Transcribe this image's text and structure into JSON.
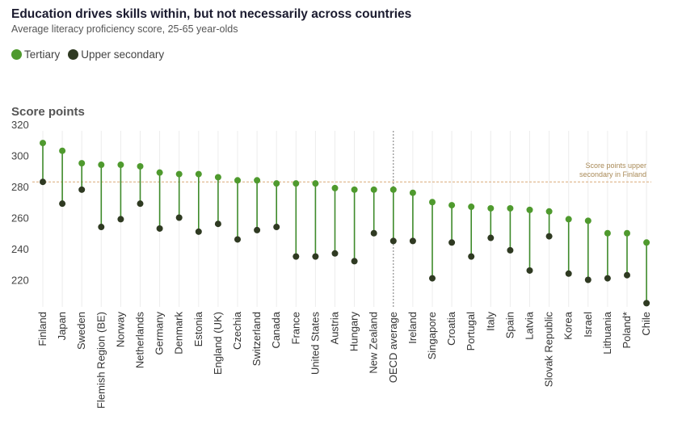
{
  "title": "Education drives skills within, but not necessarily across countries",
  "subtitle": "Average literacy proficiency score, 25-65 year-olds",
  "legend": {
    "tertiary": "Tertiary",
    "upper_secondary": "Upper secondary"
  },
  "colors": {
    "tertiary": "#4f9a2e",
    "upper_secondary": "#2f3a22",
    "stem": "#3e8a2a",
    "reference": "#d9a877"
  },
  "chart_data": {
    "type": "scatter",
    "ylabel": "Score points",
    "ylim": [
      205,
      320
    ],
    "yticks": [
      220,
      240,
      260,
      280,
      300,
      320
    ],
    "categories": [
      "Finland",
      "Japan",
      "Sweden",
      "Flemish Region (BE)",
      "Norway",
      "Netherlands",
      "Germany",
      "Denmark",
      "Estonia",
      "England (UK)",
      "Czechia",
      "Switzerland",
      "Canada",
      "France",
      "United States",
      "Austria",
      "Hungary",
      "New Zealand",
      "OECD average",
      "Ireland",
      "Singapore",
      "Croatia",
      "Portugal",
      "Italy",
      "Spain",
      "Latvia",
      "Slovak Republic",
      "Korea",
      "Israel",
      "Lithuania",
      "Poland*",
      "Chile"
    ],
    "series": [
      {
        "name": "Tertiary",
        "values": [
          308,
          303,
          295,
          294,
          294,
          293,
          289,
          288,
          288,
          286,
          284,
          284,
          282,
          282,
          282,
          279,
          278,
          278,
          278,
          276,
          270,
          268,
          267,
          266,
          266,
          265,
          264,
          259,
          258,
          250,
          250,
          244
        ]
      },
      {
        "name": "Upper secondary",
        "values": [
          283,
          269,
          278,
          254,
          259,
          269,
          253,
          260,
          251,
          256,
          246,
          252,
          254,
          235,
          235,
          237,
          232,
          250,
          245,
          245,
          221,
          244,
          235,
          247,
          239,
          226,
          248,
          224,
          220,
          221,
          223,
          205
        ]
      }
    ],
    "reference_line": {
      "value": 283,
      "label_line1": "Score points upper",
      "label_line2": "secondary in Finland"
    },
    "highlight_category": "OECD average",
    "grid": "vertical"
  }
}
